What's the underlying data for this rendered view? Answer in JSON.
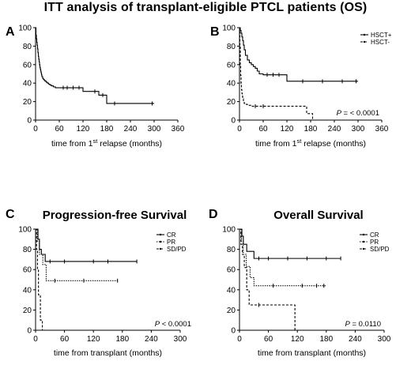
{
  "figure": {
    "title": "ITT analysis of transplant-eligible PTCL patients (OS)"
  },
  "chart_data": [
    {
      "id": "A",
      "type": "line",
      "panel_label": "A",
      "title": "",
      "xlabel": "time from 1st relapse (months)",
      "xlabel_parts": [
        "time from 1",
        "st",
        " relapse (months)"
      ],
      "ylabel": "",
      "xlim": [
        0,
        360
      ],
      "ylim": [
        0,
        100
      ],
      "xticks": [
        0,
        60,
        120,
        180,
        240,
        300,
        360
      ],
      "yticks": [
        0,
        20,
        40,
        60,
        80,
        100
      ],
      "grid": false,
      "legend": null,
      "pvalue": "",
      "series": [
        {
          "style": "solid",
          "x": [
            0,
            1,
            2,
            3,
            4,
            5,
            6,
            7,
            8,
            9,
            10,
            11,
            12,
            13,
            14,
            15,
            16,
            18,
            20,
            22,
            24,
            27,
            30,
            33,
            36,
            40,
            45,
            50,
            55,
            60,
            90,
            120,
            160,
            180,
            300
          ],
          "y": [
            100,
            92,
            88,
            84,
            81,
            77,
            73,
            69,
            66,
            63,
            60,
            57,
            55,
            53,
            51,
            49,
            47,
            45,
            44,
            43,
            42,
            41,
            40,
            39,
            38,
            37,
            36,
            35,
            35,
            35,
            35,
            31,
            27,
            18,
            18
          ],
          "censor_x": [
            70,
            80,
            95,
            110,
            150,
            170,
            200,
            295
          ]
        }
      ]
    },
    {
      "id": "B",
      "type": "line",
      "panel_label": "B",
      "title": "",
      "xlabel": "time from 1st relapse (months)",
      "xlabel_parts": [
        "time from 1",
        "st",
        " relapse (months)"
      ],
      "ylabel": "",
      "xlim": [
        0,
        360
      ],
      "ylim": [
        0,
        100
      ],
      "xticks": [
        0,
        60,
        120,
        180,
        240,
        300,
        360
      ],
      "yticks": [
        0,
        20,
        40,
        60,
        80,
        100
      ],
      "grid": false,
      "legend": "top-right",
      "pvalue": "P = < 0.0001",
      "series": [
        {
          "name": "HSCT+",
          "style": "solid",
          "x": [
            0,
            2,
            4,
            6,
            8,
            10,
            12,
            15,
            20,
            25,
            30,
            35,
            40,
            45,
            50,
            60,
            90,
            120,
            300
          ],
          "y": [
            100,
            97,
            94,
            90,
            86,
            81,
            76,
            70,
            65,
            62,
            60,
            58,
            56,
            53,
            50,
            49,
            49,
            42,
            42
          ],
          "censor_x": [
            70,
            85,
            100,
            160,
            210,
            260,
            295
          ]
        },
        {
          "name": "HSCT-",
          "style": "dashed",
          "x": [
            0,
            1,
            2,
            3,
            4,
            5,
            6,
            7,
            8,
            10,
            12,
            15,
            20,
            30,
            160,
            170,
            185
          ],
          "y": [
            100,
            80,
            60,
            48,
            40,
            33,
            29,
            26,
            23,
            20,
            18,
            17,
            16,
            15,
            15,
            7,
            0
          ],
          "censor_x": [
            40,
            60
          ]
        }
      ]
    },
    {
      "id": "C",
      "type": "line",
      "panel_label": "C",
      "title": "Progression-free Survival",
      "xlabel": "time from transplant (months)",
      "ylabel": "",
      "xlim": [
        0,
        300
      ],
      "ylim": [
        0,
        100
      ],
      "xticks": [
        0,
        60,
        120,
        180,
        240,
        300
      ],
      "yticks": [
        0,
        20,
        40,
        60,
        80,
        100
      ],
      "grid": false,
      "legend": "top-right",
      "pvalue": "P < 0.0001",
      "series": [
        {
          "name": "CR",
          "style": "solid",
          "x": [
            0,
            5,
            8,
            12,
            20,
            210
          ],
          "y": [
            100,
            90,
            80,
            75,
            68,
            68
          ],
          "censor_x": [
            30,
            60,
            120,
            150,
            210
          ]
        },
        {
          "name": "PR",
          "style": "dotted",
          "x": [
            0,
            4,
            8,
            15,
            22,
            170
          ],
          "y": [
            100,
            88,
            75,
            65,
            49,
            49
          ],
          "censor_x": [
            40,
            100,
            170
          ]
        },
        {
          "name": "SD/PD",
          "style": "dashed",
          "x": [
            0,
            2,
            4,
            6,
            10,
            14
          ],
          "y": [
            100,
            80,
            60,
            35,
            10,
            0
          ],
          "censor_x": []
        }
      ]
    },
    {
      "id": "D",
      "type": "line",
      "panel_label": "D",
      "title": "Overall Survival",
      "xlabel": "time from transplant (months)",
      "ylabel": "",
      "xlim": [
        0,
        300
      ],
      "ylim": [
        0,
        100
      ],
      "xticks": [
        0,
        60,
        120,
        180,
        240,
        300
      ],
      "yticks": [
        0,
        20,
        40,
        60,
        80,
        100
      ],
      "grid": false,
      "legend": "top-right",
      "pvalue": "P = 0.0110",
      "series": [
        {
          "name": "CR",
          "style": "solid",
          "x": [
            0,
            5,
            8,
            15,
            30,
            210
          ],
          "y": [
            100,
            93,
            85,
            78,
            71,
            71
          ],
          "censor_x": [
            40,
            60,
            100,
            140,
            180,
            210
          ]
        },
        {
          "name": "PR",
          "style": "dotted",
          "x": [
            0,
            4,
            8,
            14,
            22,
            30,
            180
          ],
          "y": [
            100,
            88,
            75,
            63,
            52,
            44,
            44
          ],
          "censor_x": [
            70,
            130,
            160,
            175
          ]
        },
        {
          "name": "SD/PD",
          "style": "dashed",
          "x": [
            0,
            3,
            6,
            10,
            15,
            20,
            110,
            115
          ],
          "y": [
            100,
            85,
            75,
            62,
            40,
            25,
            25,
            0
          ],
          "censor_x": [
            40
          ]
        }
      ]
    }
  ]
}
